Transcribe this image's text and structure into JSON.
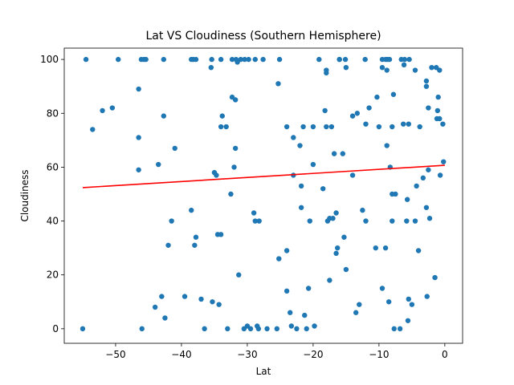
{
  "chart_data": {
    "type": "scatter",
    "title": "Lat VS Cloudiness (Southern Hemisphere)",
    "x_label": "Lat",
    "y_label": "Cloudiness",
    "color": "#1f77b4",
    "x": [
      -54.5,
      -49.6,
      -46.1,
      -45.7,
      -45.4,
      -42.7,
      -38.5,
      -38.2,
      -37.8,
      -35.4,
      -34,
      -32.3,
      -31.7,
      -31,
      -30.4,
      -29.8,
      -28.8,
      -27.6,
      -25.1,
      -19.1,
      -16,
      -15.1,
      -12.1,
      -9.5,
      -9,
      -8.7,
      -8.4,
      -6.6,
      -6.1,
      -5.4,
      -55,
      -53.5,
      -52,
      -50.5,
      -46.5,
      -46.5,
      -46.5,
      -46,
      -43.5,
      -43,
      -42.7,
      -42.5,
      -44,
      -42,
      -41.5,
      -41,
      -39.5,
      -38.5,
      -38,
      -37.8,
      -37,
      -36.5,
      -35.5,
      -35.3,
      -35,
      -34.7,
      -34.5,
      -34.3,
      -34,
      -34,
      -33.8,
      -33.2,
      -33,
      -32.5,
      -32.3,
      -32,
      -31.8,
      -31.8,
      -31.5,
      -31.3,
      -30.5,
      -30,
      -29.5,
      -29,
      -28.8,
      -28.5,
      -28.3,
      -28.2,
      -27,
      -25.5,
      -25.3,
      -25.2,
      -24,
      -24,
      -24,
      -23.5,
      -23.3,
      -23,
      -23,
      -22.5,
      -22,
      -21.8,
      -21.8,
      -21.5,
      -21.3,
      -21,
      -20.7,
      -20.5,
      -20,
      -20,
      -19.8,
      -18.5,
      -18.2,
      -18,
      -18,
      -18,
      -17.8,
      -17.5,
      -17.5,
      -17.2,
      -17,
      -16.8,
      -16.5,
      -16.5,
      -16.3,
      -16,
      -15.5,
      -15.3,
      -15,
      -15,
      -14,
      -14,
      -13.5,
      -13.3,
      -13,
      -12.5,
      -12,
      -12,
      -11.5,
      -10.5,
      -10.3,
      -10,
      -9.5,
      -9.5,
      -9,
      -8.8,
      -8.8,
      -8.5,
      -8.3,
      -8,
      -8,
      -8,
      -7.8,
      -7.7,
      -7.5,
      -6.8,
      -6.3,
      -6.2,
      -5.8,
      -5.7,
      -5.6,
      -5.5,
      -5.5,
      -5,
      -4.5,
      -4.5,
      -4.3,
      -4,
      -3.8,
      -3.3,
      -2.8,
      -2.8,
      -2.8,
      -2.7,
      -2.5,
      -2.5,
      -2.3,
      -2,
      -1.5,
      -1.3,
      -1.2,
      -1.1,
      -1,
      -0.8,
      -0.8,
      -0.7,
      -0.3,
      -0.2
    ],
    "values": [
      100,
      100,
      100,
      100,
      100,
      100,
      100,
      100,
      100,
      100,
      100,
      100,
      100,
      100,
      100,
      100,
      100,
      100,
      100,
      100,
      100,
      100,
      100,
      100,
      100,
      100,
      100,
      100,
      100,
      100,
      0,
      74,
      81,
      82,
      89,
      71,
      59,
      0,
      61,
      12,
      79,
      4,
      8,
      31,
      40,
      67,
      12,
      44,
      31,
      34,
      11,
      0,
      97,
      10,
      58,
      57,
      35,
      9,
      35,
      75,
      79,
      75,
      0,
      50,
      86,
      60,
      85,
      67,
      99,
      20,
      0,
      1,
      0,
      43,
      40,
      1,
      0,
      40,
      0,
      0,
      91,
      26,
      75,
      14,
      29,
      6,
      1,
      71,
      57,
      0,
      68,
      53,
      45,
      75,
      5,
      0,
      15,
      40,
      75,
      61,
      1,
      52,
      81,
      75,
      96,
      95,
      40,
      41,
      18,
      75,
      41,
      65,
      43,
      28,
      30,
      100,
      65,
      34,
      22,
      97,
      57,
      79,
      6,
      80,
      9,
      44,
      76,
      40,
      82,
      30,
      86,
      75,
      15,
      97,
      30,
      96,
      68,
      10,
      60,
      75,
      50,
      40,
      87,
      0,
      50,
      0,
      76,
      98,
      40,
      48,
      3,
      11,
      76,
      9,
      96,
      40,
      53,
      29,
      75,
      56,
      92,
      90,
      45,
      12,
      59,
      82,
      41,
      97,
      19,
      97,
      78,
      81,
      86,
      96,
      78,
      57,
      76,
      62
    ],
    "regression": {
      "x": [
        -55,
        0
      ],
      "y": [
        52.4,
        60.7
      ],
      "color": "#ff0000"
    },
    "xlim": [
      -57.8,
      2.7
    ],
    "ylim": [
      -5.4,
      104.2
    ],
    "xticks": [
      {
        "value": -50,
        "label": "−50"
      },
      {
        "value": -40,
        "label": "−40"
      },
      {
        "value": -30,
        "label": "−30"
      },
      {
        "value": -20,
        "label": "−20"
      },
      {
        "value": -10,
        "label": "−10"
      },
      0
    ],
    "yticks": [
      0,
      20,
      40,
      60,
      80,
      100
    ]
  }
}
